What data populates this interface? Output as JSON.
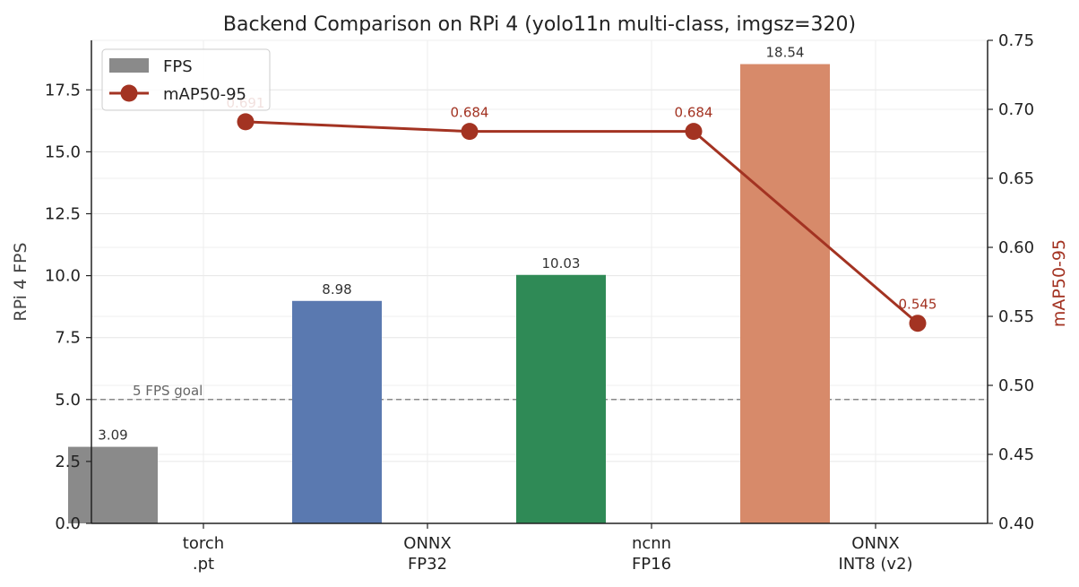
{
  "chart_data": {
    "type": "bar",
    "title": "Backend Comparison on RPi 4 (yolo11n multi-class, imgsz=320)",
    "categories": [
      "torch\n.pt",
      "ONNX\nFP32",
      "ncnn\nFP16",
      "ONNX\nINT8 (v2)"
    ],
    "series": [
      {
        "name": "FPS",
        "type": "bar",
        "axis": "left",
        "values": [
          3.09,
          8.98,
          10.03,
          18.54
        ],
        "labels": [
          "3.09",
          "8.98",
          "10.03",
          "18.54"
        ],
        "colors": [
          "#8a8a8a",
          "#5a79b0",
          "#2f8a56",
          "#d78a6a"
        ]
      },
      {
        "name": "mAP50-95",
        "type": "line",
        "axis": "right",
        "values": [
          0.691,
          0.684,
          0.684,
          0.545
        ],
        "labels": [
          "0.691",
          "0.684",
          "0.684",
          "0.545"
        ],
        "color": "#a33322"
      }
    ],
    "ylabel": "RPi 4 FPS",
    "ylim": [
      0,
      19.5
    ],
    "yticks": [
      "0.0",
      "2.5",
      "5.0",
      "7.5",
      "10.0",
      "12.5",
      "15.0",
      "17.5"
    ],
    "y2label": "mAP50-95",
    "y2lim": [
      0.4,
      0.75
    ],
    "y2ticks": [
      "0.40",
      "0.45",
      "0.50",
      "0.55",
      "0.60",
      "0.65",
      "0.70",
      "0.75"
    ],
    "reference_line": {
      "value": 5.0,
      "label": "5 FPS goal",
      "color": "#888888"
    },
    "legend_position": "top-left",
    "grid": true
  }
}
